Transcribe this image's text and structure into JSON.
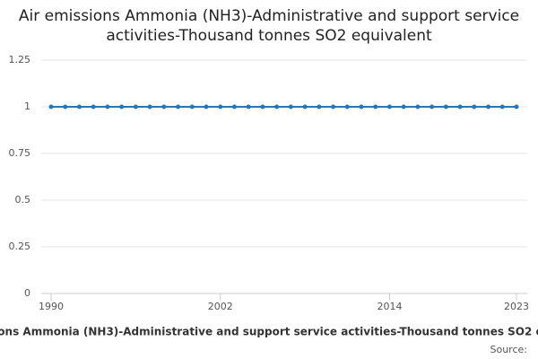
{
  "chart_data": {
    "type": "line",
    "title": "Air emissions Ammonia (NH3)-Administrative and support service activities-Thousand tonnes SO2 equivalent",
    "x": [
      1990,
      1991,
      1992,
      1993,
      1994,
      1995,
      1996,
      1997,
      1998,
      1999,
      2000,
      2001,
      2002,
      2003,
      2004,
      2005,
      2006,
      2007,
      2008,
      2009,
      2010,
      2011,
      2012,
      2013,
      2014,
      2015,
      2016,
      2017,
      2018,
      2019,
      2020,
      2021,
      2022,
      2023
    ],
    "series": [
      {
        "name": "Air emissions Ammonia (NH3)-Administrative and support service activities-Thousand tonnes SO2 equivalent",
        "color": "#2776b6",
        "values": [
          1,
          1,
          1,
          1,
          1,
          1,
          1,
          1,
          1,
          1,
          1,
          1,
          1,
          1,
          1,
          1,
          1,
          1,
          1,
          1,
          1,
          1,
          1,
          1,
          1,
          1,
          1,
          1,
          1,
          1,
          1,
          1,
          1,
          1
        ]
      }
    ],
    "xlim": [
      1990,
      2023
    ],
    "xticks": [
      1990,
      2002,
      2014,
      2023
    ],
    "ylim": [
      0,
      1.25
    ],
    "yticks": [
      0,
      0.25,
      0.5,
      0.75,
      1,
      1.25
    ],
    "grid": true,
    "source": "Source:"
  }
}
